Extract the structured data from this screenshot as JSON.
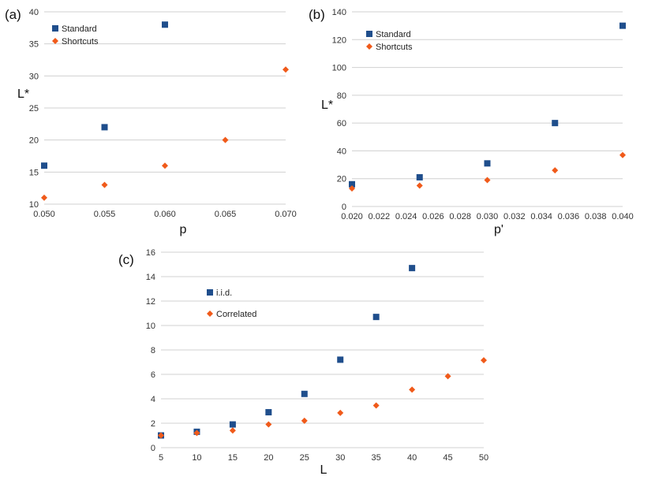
{
  "colors": {
    "standard": "#1f4e8c",
    "shortcuts": "#f05a1a"
  },
  "chart_data": [
    {
      "id": "a",
      "type": "scatter",
      "panel_label": "(a)",
      "xlabel": "p",
      "ylabel": "L*",
      "xlim": [
        0.05,
        0.07
      ],
      "ylim": [
        10,
        40
      ],
      "x_ticks": [
        "0.050",
        "0.055",
        "0.060",
        "0.065",
        "0.070"
      ],
      "y_ticks": [
        "10",
        "15",
        "20",
        "25",
        "30",
        "35",
        "40"
      ],
      "legend_position": "top-left",
      "series": [
        {
          "name": "Standard",
          "marker": "square",
          "x": [
            0.05,
            0.055,
            0.06
          ],
          "y": [
            16,
            22,
            38
          ]
        },
        {
          "name": "Shortcuts",
          "marker": "diamond",
          "x": [
            0.05,
            0.055,
            0.06,
            0.065,
            0.07
          ],
          "y": [
            11,
            13,
            16,
            20,
            31
          ]
        }
      ]
    },
    {
      "id": "b",
      "type": "scatter",
      "panel_label": "(b)",
      "xlabel": "p'",
      "ylabel": "L*",
      "xlim": [
        0.02,
        0.04
      ],
      "ylim": [
        0,
        140
      ],
      "x_ticks": [
        "0.020",
        "0.022",
        "0.024",
        "0.026",
        "0.028",
        "0.030",
        "0.032",
        "0.034",
        "0.036",
        "0.038",
        "0.040"
      ],
      "y_ticks": [
        "0",
        "20",
        "40",
        "60",
        "80",
        "100",
        "120",
        "140"
      ],
      "legend_position": "top-left",
      "series": [
        {
          "name": "Standard",
          "marker": "square",
          "x": [
            0.02,
            0.025,
            0.03,
            0.035,
            0.04
          ],
          "y": [
            16,
            21,
            31,
            60,
            130
          ]
        },
        {
          "name": "Shortcuts",
          "marker": "diamond",
          "x": [
            0.02,
            0.025,
            0.03,
            0.035,
            0.04
          ],
          "y": [
            13,
            15,
            19,
            26,
            37
          ]
        }
      ]
    },
    {
      "id": "c",
      "type": "scatter",
      "panel_label": "(c)",
      "xlabel": "L",
      "ylabel": "",
      "xlim": [
        5,
        50
      ],
      "ylim": [
        0,
        16
      ],
      "x_ticks": [
        "5",
        "10",
        "15",
        "20",
        "25",
        "30",
        "35",
        "40",
        "45",
        "50"
      ],
      "y_ticks": [
        "0",
        "2",
        "4",
        "6",
        "8",
        "10",
        "12",
        "14",
        "16"
      ],
      "legend_position": "top-left",
      "series": [
        {
          "name": "i.i.d.",
          "marker": "square",
          "x": [
            5,
            10,
            15,
            20,
            25,
            30,
            35,
            40
          ],
          "y": [
            1.0,
            1.3,
            1.9,
            2.9,
            4.4,
            7.2,
            10.7,
            14.7
          ]
        },
        {
          "name": "Correlated",
          "marker": "diamond",
          "x": [
            5,
            10,
            15,
            20,
            25,
            30,
            35,
            40,
            45,
            50
          ],
          "y": [
            1.0,
            1.2,
            1.4,
            1.9,
            2.2,
            2.85,
            3.45,
            4.75,
            5.85,
            7.15
          ]
        }
      ]
    }
  ]
}
